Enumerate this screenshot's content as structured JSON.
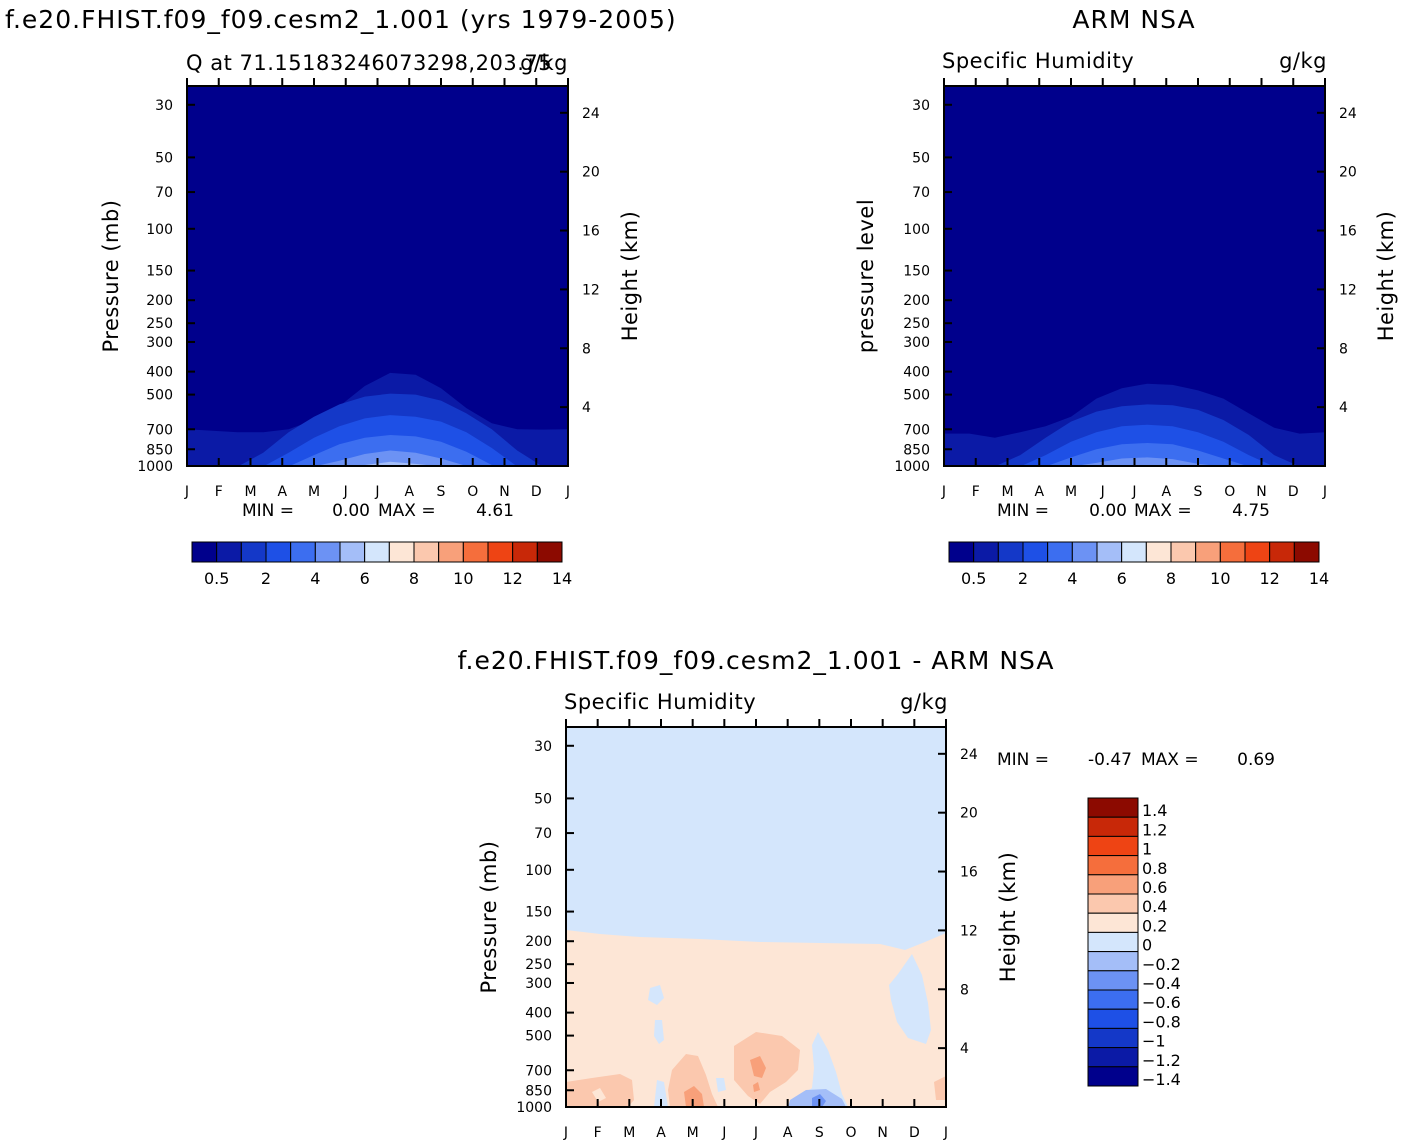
{
  "colors": {
    "model_levels": [
      "#00008c",
      "#0b1aa6",
      "#1438c8",
      "#1e50e6",
      "#3c6ef0",
      "#6c92f4",
      "#a4bef8",
      "#d4e6fc",
      "#fde6d6",
      "#fbc8ae",
      "#f8a07a",
      "#f56e3c",
      "#ee4414",
      "#c82808",
      "#8c0a00"
    ],
    "diff_levels": [
      "#00008c",
      "#0b1aa6",
      "#1438c8",
      "#1e50e6",
      "#3c6ef0",
      "#6c92f4",
      "#a4bef8",
      "#d4e6fc",
      "#fde6d6",
      "#fbc8ae",
      "#f8a07a",
      "#f56e3c",
      "#ee4414",
      "#c82808",
      "#8c0a00"
    ]
  },
  "chart_data": [
    {
      "type": "heatmap",
      "panel": "model",
      "title": "f.e20.FHIST.f09_f09.cesm2_1.001 (yrs 1979-2005)",
      "subtitle_left": "Q at 71.15183246073298,203.75",
      "subtitle_right": "g/kg",
      "ylabel": "Pressure (mb)",
      "y2label": "Height (km)",
      "x_ticklabels": [
        "J",
        "F",
        "M",
        "A",
        "M",
        "J",
        "J",
        "A",
        "S",
        "O",
        "N",
        "D",
        "J"
      ],
      "y_ticklabels": [
        "30",
        "50",
        "70",
        "100",
        "150",
        "200",
        "250",
        "300",
        "400",
        "500",
        "700",
        "850",
        "1000"
      ],
      "y_ticks": [
        30,
        50,
        70,
        100,
        150,
        200,
        250,
        300,
        400,
        500,
        700,
        850,
        1000
      ],
      "y2_ticklabels": [
        "24",
        "20",
        "16",
        "12",
        "8",
        "4"
      ],
      "y2_ticks": [
        24,
        20,
        16,
        12,
        8,
        4
      ],
      "ylim": [
        1000,
        25
      ],
      "y_scale": "log",
      "min_label": "MIN =",
      "min_value": "0.00",
      "max_label": "MAX =",
      "max_value": "4.61",
      "levels": [
        0.5,
        1,
        2,
        3,
        4,
        5,
        6,
        7,
        8,
        9,
        10,
        11,
        12,
        13,
        14
      ],
      "colorbar_labels": [
        "0.5",
        "2",
        "4",
        "6",
        "8",
        "10",
        "12",
        "14"
      ],
      "contours": [
        {
          "level_index": 1,
          "pressure_top": [
            700,
            710,
            720,
            720,
            700,
            640,
            560,
            460,
            405,
            412,
            470,
            570,
            660,
            700,
            702,
            700
          ],
          "x_end": 1.0
        },
        {
          "level_index": 2,
          "pressure_top": [
            1005,
            1005,
            1005,
            880,
            720,
            620,
            550,
            510,
            495,
            500,
            530,
            600,
            700,
            860,
            1005,
            1005
          ],
          "x_end": 1.0
        },
        {
          "level_index": 3,
          "pressure_top": [
            1005,
            1005,
            1005,
            1005,
            880,
            760,
            680,
            630,
            610,
            620,
            650,
            720,
            840,
            1005,
            1005,
            1005
          ],
          "x_end": 1.0
        },
        {
          "level_index": 4,
          "pressure_top": [
            1005,
            1005,
            1005,
            1005,
            1005,
            900,
            810,
            760,
            740,
            750,
            790,
            870,
            990,
            1005,
            1005,
            1005
          ],
          "x_end": 1.0
        },
        {
          "level_index": 5,
          "pressure_top": [
            1005,
            1005,
            1005,
            1005,
            1005,
            1005,
            950,
            890,
            860,
            880,
            930,
            1000,
            1005,
            1005,
            1005,
            1005
          ],
          "x_end": 1.0
        },
        {
          "level_index": 6,
          "pressure_top": [
            1005,
            1005,
            1005,
            1005,
            1005,
            1005,
            1005,
            990,
            960,
            980,
            1005,
            1005,
            1005,
            1005,
            1005,
            1005
          ],
          "x_end": 1.0
        }
      ]
    },
    {
      "type": "heatmap",
      "panel": "obs",
      "title": "ARM NSA",
      "subtitle_left": "Specific Humidity",
      "subtitle_right": "g/kg",
      "ylabel": "pressure level",
      "y2label": "Height (km)",
      "x_ticklabels": [
        "J",
        "F",
        "M",
        "A",
        "M",
        "J",
        "J",
        "A",
        "S",
        "O",
        "N",
        "D",
        "J"
      ],
      "y_ticklabels": [
        "30",
        "50",
        "70",
        "100",
        "150",
        "200",
        "250",
        "300",
        "400",
        "500",
        "700",
        "850",
        "1000"
      ],
      "y_ticks": [
        30,
        50,
        70,
        100,
        150,
        200,
        250,
        300,
        400,
        500,
        700,
        850,
        1000
      ],
      "y2_ticklabels": [
        "24",
        "20",
        "16",
        "12",
        "8",
        "4"
      ],
      "y2_ticks": [
        24,
        20,
        16,
        12,
        8,
        4
      ],
      "ylim": [
        1000,
        25
      ],
      "y_scale": "log",
      "min_label": "MIN =",
      "min_value": "0.00",
      "max_label": "MAX =",
      "max_value": "4.75",
      "levels": [
        0.5,
        1,
        2,
        3,
        4,
        5,
        6,
        7,
        8,
        9,
        10,
        11,
        12,
        13,
        14
      ],
      "colorbar_labels": [
        "0.5",
        "2",
        "4",
        "6",
        "8",
        "10",
        "12",
        "14"
      ],
      "contours": [
        {
          "level_index": 1,
          "pressure_top": [
            730,
            730,
            760,
            720,
            680,
            620,
            520,
            470,
            450,
            455,
            480,
            520,
            600,
            690,
            730,
            720
          ],
          "x_end": 1.0
        },
        {
          "level_index": 2,
          "pressure_top": [
            1005,
            1005,
            1005,
            900,
            760,
            650,
            590,
            560,
            550,
            555,
            580,
            640,
            740,
            900,
            1005,
            1005
          ],
          "x_end": 1.0
        },
        {
          "level_index": 3,
          "pressure_top": [
            1005,
            1005,
            1005,
            1005,
            900,
            790,
            720,
            680,
            670,
            680,
            720,
            790,
            900,
            1005,
            1005,
            1005
          ],
          "x_end": 1.0
        },
        {
          "level_index": 4,
          "pressure_top": [
            1005,
            1005,
            1005,
            1005,
            1005,
            920,
            850,
            810,
            800,
            810,
            860,
            930,
            1005,
            1005,
            1005,
            1005
          ],
          "x_end": 1.0
        },
        {
          "level_index": 5,
          "pressure_top": [
            1005,
            1005,
            1005,
            1005,
            1005,
            1005,
            970,
            930,
            920,
            935,
            980,
            1005,
            1005,
            1005,
            1005,
            1005
          ],
          "x_end": 1.0
        }
      ]
    },
    {
      "type": "heatmap",
      "panel": "diff",
      "title": "f.e20.FHIST.f09_f09.cesm2_1.001 - ARM NSA",
      "subtitle_left": "Specific Humidity",
      "subtitle_right": "g/kg",
      "ylabel": "Pressure (mb)",
      "y2label": "Height (km)",
      "x_ticklabels": [
        "J",
        "F",
        "M",
        "A",
        "M",
        "J",
        "J",
        "A",
        "S",
        "O",
        "N",
        "D",
        "J"
      ],
      "y_ticklabels": [
        "30",
        "50",
        "70",
        "100",
        "150",
        "200",
        "250",
        "300",
        "400",
        "500",
        "700",
        "850",
        "1000"
      ],
      "y_ticks": [
        30,
        50,
        70,
        100,
        150,
        200,
        250,
        300,
        400,
        500,
        700,
        850,
        1000
      ],
      "y2_ticklabels": [
        "24",
        "20",
        "16",
        "12",
        "8",
        "4"
      ],
      "y2_ticks": [
        24,
        20,
        16,
        12,
        8,
        4
      ],
      "ylim": [
        1000,
        25
      ],
      "y_scale": "log",
      "min_label": "MIN =",
      "min_value": "-0.47",
      "max_label": "MAX =",
      "max_value": "0.69",
      "levels": [
        -1.4,
        -1.2,
        -1,
        -0.8,
        -0.6,
        -0.4,
        -0.2,
        0,
        0.2,
        0.4,
        0.6,
        0.8,
        1,
        1.2,
        1.4
      ],
      "colorbar_labels": [
        "1.4",
        "1.2",
        "1",
        "0.8",
        "0.6",
        "0.4",
        "0.2",
        "0",
        "−0.2",
        "−0.4",
        "−0.6",
        "−0.8",
        "−1",
        "−1.2",
        "−1.4"
      ]
    }
  ]
}
